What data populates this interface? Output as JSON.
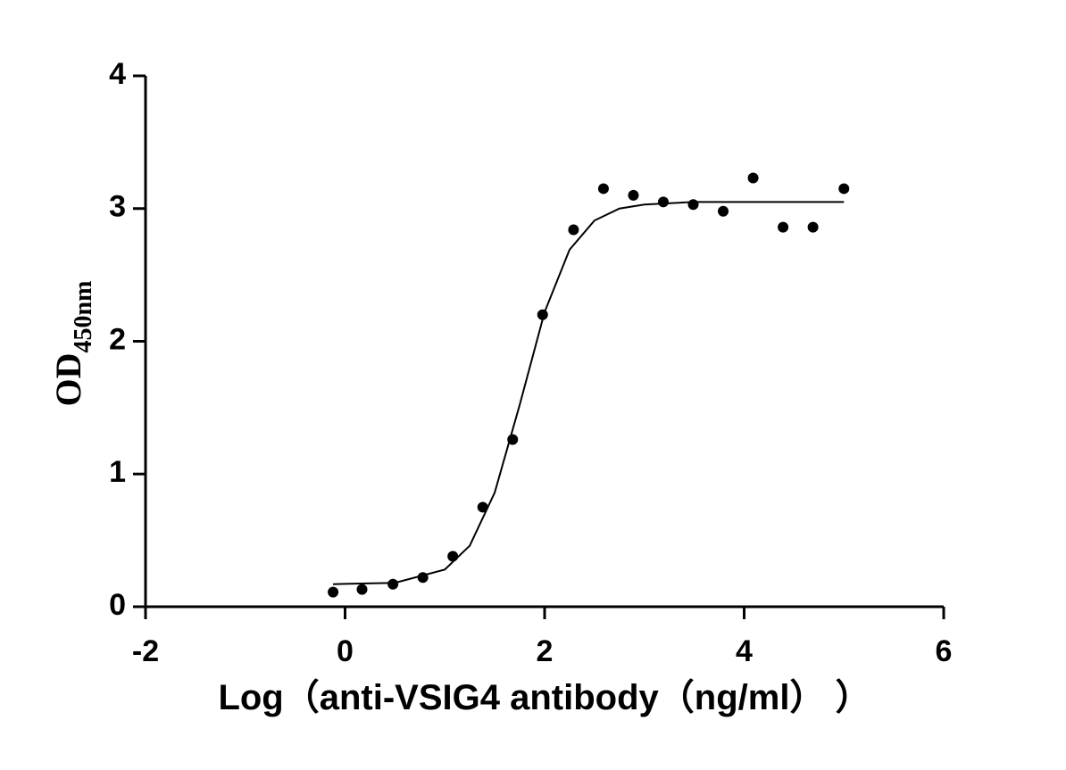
{
  "chart_data": {
    "type": "scatter",
    "x_label": "Log（anti-VSIG4 antibody（ng/ml）  ）",
    "y_label": "OD",
    "y_label_subscript": "450nm",
    "xlim": [
      -2,
      6
    ],
    "xticks": [
      -2,
      0,
      2,
      4,
      6
    ],
    "ylim": [
      0,
      4
    ],
    "yticks": [
      0,
      1,
      2,
      3,
      4
    ],
    "grid": false,
    "color": "#000000",
    "points": {
      "x": [
        -0.12,
        0.17,
        0.48,
        0.78,
        1.08,
        1.38,
        1.68,
        1.98,
        2.29,
        2.59,
        2.89,
        3.19,
        3.49,
        3.79,
        4.09,
        4.39,
        4.69,
        5.0
      ],
      "y": [
        0.11,
        0.13,
        0.17,
        0.22,
        0.38,
        0.75,
        1.26,
        2.2,
        2.84,
        3.15,
        3.1,
        3.05,
        3.03,
        2.98,
        3.23,
        2.86,
        2.86,
        3.15
      ]
    },
    "curve": {
      "x": [
        -0.12,
        0.5,
        1.0,
        1.25,
        1.5,
        1.75,
        2.0,
        2.25,
        2.5,
        2.75,
        3.0,
        3.5,
        5.0
      ],
      "y": [
        0.17,
        0.18,
        0.28,
        0.46,
        0.86,
        1.52,
        2.22,
        2.69,
        2.91,
        3.0,
        3.03,
        3.05,
        3.05
      ]
    }
  }
}
